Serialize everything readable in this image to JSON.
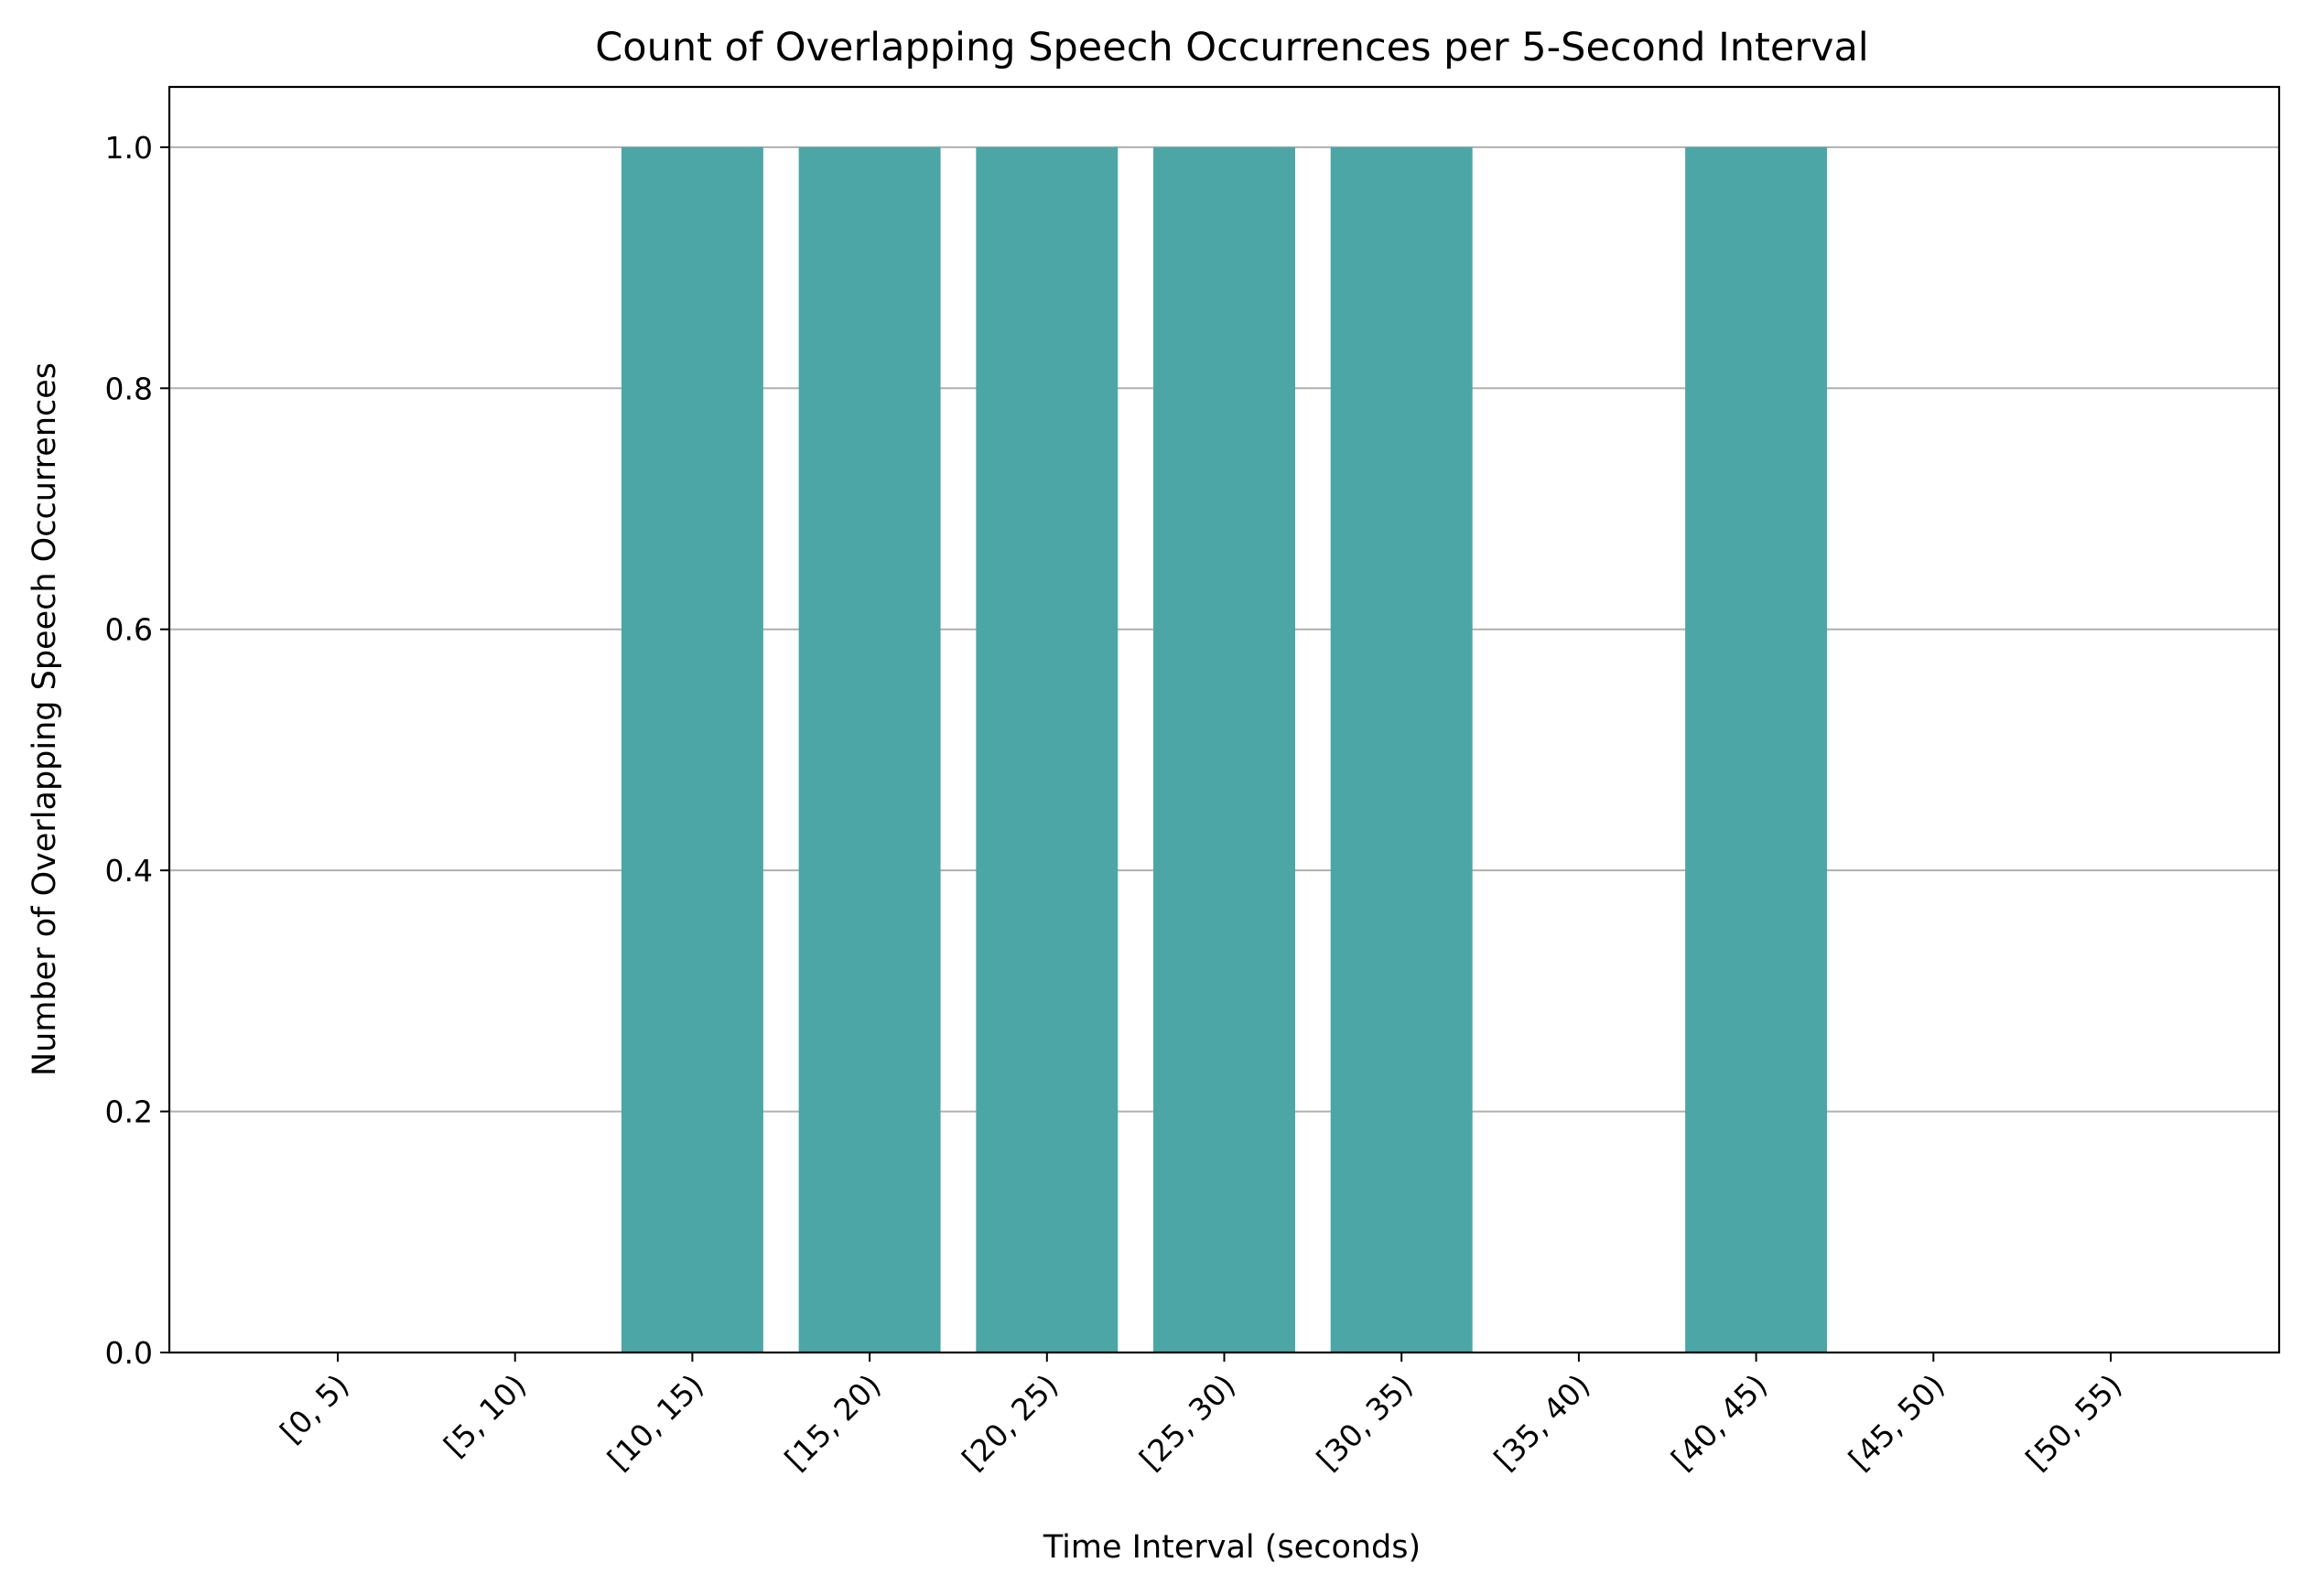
{
  "chart_data": {
    "type": "bar",
    "title": "Count of Overlapping Speech Occurrences per 5-Second Interval",
    "xlabel": "Time Interval (seconds)",
    "ylabel": "Number of Overlapping Speech Occurrences",
    "categories": [
      "[0, 5)",
      "[5, 10)",
      "[10, 15)",
      "[15, 20)",
      "[20, 25)",
      "[25, 30)",
      "[30, 35)",
      "[35, 40)",
      "[40, 45)",
      "[45, 50)",
      "[50, 55)"
    ],
    "values": [
      0,
      0,
      1,
      1,
      1,
      1,
      1,
      0,
      1,
      0,
      0
    ],
    "ylim": [
      0,
      1.05
    ],
    "yticks": [
      "0.0",
      "0.2",
      "0.4",
      "0.6",
      "0.8",
      "1.0"
    ],
    "grid": "horizontal",
    "bar_color": "#4ca6a6"
  }
}
